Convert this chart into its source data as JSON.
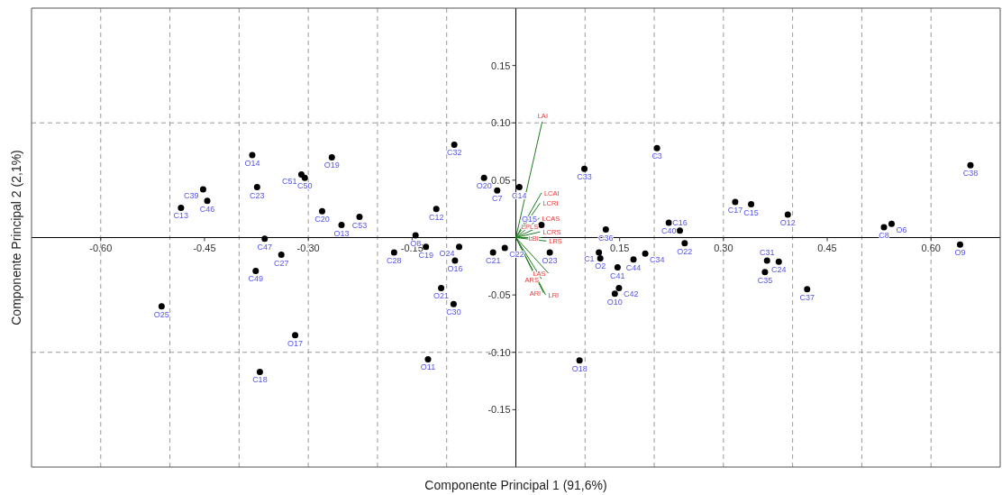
{
  "chart_data": {
    "type": "scatter",
    "xlabel": "Componente Principal 1 (91,6%)",
    "ylabel": "Componente Principal 2 (2,1%)",
    "xlim": [
      -0.7,
      0.7
    ],
    "ylim": [
      -0.2,
      0.2
    ],
    "xticks": [
      {
        "value": -0.6,
        "label": "-0.60"
      },
      {
        "value": -0.45,
        "label": "-0.45"
      },
      {
        "value": -0.3,
        "label": "-0.30"
      },
      {
        "value": -0.15,
        "label": "-0.15"
      },
      {
        "value": 0.15,
        "label": "0.15"
      },
      {
        "value": 0.3,
        "label": "0.30"
      },
      {
        "value": 0.45,
        "label": "0.45"
      },
      {
        "value": 0.6,
        "label": "0.60"
      }
    ],
    "yticks": [
      {
        "value": -0.15,
        "label": "-0.15"
      },
      {
        "value": -0.1,
        "label": "-0.10"
      },
      {
        "value": -0.05,
        "label": "-0.05"
      },
      {
        "value": 0.05,
        "label": "0.05"
      },
      {
        "value": 0.1,
        "label": "0.10"
      },
      {
        "value": 0.15,
        "label": "0.15"
      }
    ],
    "grid": false,
    "marker": "circle",
    "ref_lines": [
      {
        "axis": "x",
        "value": -0.6,
        "color": "#999999",
        "line_style": "dashed"
      },
      {
        "axis": "x",
        "value": -0.5,
        "color": "#999999",
        "line_style": "dashed"
      },
      {
        "axis": "x",
        "value": -0.4,
        "color": "#999999",
        "line_style": "dashed"
      },
      {
        "axis": "x",
        "value": -0.3,
        "color": "#999999",
        "line_style": "dashed"
      },
      {
        "axis": "x",
        "value": -0.2,
        "color": "#999999",
        "line_style": "dashed"
      },
      {
        "axis": "x",
        "value": -0.1,
        "color": "#999999",
        "line_style": "dashed"
      },
      {
        "axis": "x",
        "value": 0.1,
        "color": "#999999",
        "line_style": "dashed"
      },
      {
        "axis": "x",
        "value": 0.2,
        "color": "#999999",
        "line_style": "dashed"
      },
      {
        "axis": "x",
        "value": 0.3,
        "color": "#999999",
        "line_style": "dashed"
      },
      {
        "axis": "x",
        "value": 0.4,
        "color": "#999999",
        "line_style": "dashed"
      },
      {
        "axis": "x",
        "value": 0.5,
        "color": "#999999",
        "line_style": "dashed"
      },
      {
        "axis": "x",
        "value": 0.6,
        "color": "#999999",
        "line_style": "dashed"
      },
      {
        "axis": "y",
        "value": -0.1,
        "color": "#999999",
        "line_style": "dashed"
      },
      {
        "axis": "y",
        "value": 0.1,
        "color": "#999999",
        "line_style": "dashed"
      },
      {
        "axis": "x",
        "value": 0,
        "color": "#000000",
        "line_style": "solid"
      },
      {
        "axis": "y",
        "value": 0,
        "color": "#000000",
        "line_style": "solid"
      }
    ],
    "series": [
      {
        "type": "scatter",
        "color": "#000000",
        "x": [
          -0.484,
          -0.452,
          -0.446,
          -0.381,
          -0.374,
          -0.31,
          -0.305,
          -0.266,
          -0.28,
          -0.252,
          -0.226,
          -0.363,
          -0.339,
          -0.376,
          -0.512,
          -0.319,
          -0.37,
          -0.089,
          -0.046,
          -0.027,
          0.005,
          -0.115,
          -0.145,
          -0.176,
          -0.13,
          -0.082,
          -0.088,
          -0.033,
          -0.016,
          -0.108,
          -0.09,
          -0.127,
          0.037,
          0.099,
          0.049,
          0.204,
          0.221,
          0.237,
          0.13,
          0.244,
          0.12,
          0.122,
          0.17,
          0.187,
          0.147,
          0.149,
          0.143,
          0.092,
          0.317,
          0.34,
          0.393,
          0.532,
          0.543,
          0.657,
          0.642,
          0.363,
          0.38,
          0.36,
          0.421
        ],
        "values": [
          0.026,
          0.042,
          0.032,
          0.072,
          0.044,
          0.055,
          0.052,
          0.07,
          0.023,
          0.011,
          0.018,
          -0.001,
          -0.015,
          -0.029,
          -0.06,
          -0.085,
          -0.117,
          0.081,
          0.052,
          0.041,
          0.044,
          0.025,
          0.002,
          -0.013,
          -0.008,
          -0.008,
          -0.02,
          -0.013,
          -0.009,
          -0.044,
          -0.058,
          -0.106,
          0.011,
          0.06,
          -0.013,
          0.078,
          0.013,
          0.006,
          0.007,
          -0.005,
          -0.013,
          -0.018,
          -0.019,
          -0.014,
          -0.026,
          -0.044,
          -0.049,
          -0.107,
          0.031,
          0.029,
          0.02,
          0.009,
          0.012,
          0.063,
          -0.006,
          -0.02,
          -0.021,
          -0.03,
          -0.045
        ]
      },
      {
        "type": "line",
        "name": "LAI",
        "color": "#1e7b1e",
        "marker": "none",
        "x": [
          0,
          0.038
        ],
        "values": [
          0,
          0.101
        ]
      },
      {
        "type": "line",
        "name": "LCAI",
        "color": "#1e7b1e",
        "marker": "none",
        "x": [
          0,
          0.037
        ],
        "values": [
          0,
          0.039
        ]
      },
      {
        "type": "line",
        "name": "LCRI",
        "color": "#1e7b1e",
        "marker": "none",
        "x": [
          0,
          0.035
        ],
        "values": [
          0,
          0.03
        ]
      },
      {
        "type": "line",
        "name": "LCAS",
        "color": "#1e7b1e",
        "marker": "none",
        "x": [
          0,
          0.034
        ],
        "values": [
          0,
          0.017
        ]
      },
      {
        "type": "line",
        "name": "LPLS",
        "color": "#1e7b1e",
        "marker": "none",
        "x": [
          0,
          0.036
        ],
        "values": [
          0,
          0.01
        ]
      },
      {
        "type": "line",
        "name": "LCRS",
        "color": "#1e7b1e",
        "marker": "none",
        "x": [
          0,
          0.035
        ],
        "values": [
          0,
          0.005
        ]
      },
      {
        "type": "line",
        "name": "LBI",
        "color": "#1e7b1e",
        "marker": "none",
        "x": [
          0,
          0.037
        ],
        "values": [
          0,
          0
        ]
      },
      {
        "type": "line",
        "name": "LRS",
        "color": "#1e7b1e",
        "marker": "none",
        "x": [
          0,
          0.044
        ],
        "values": [
          0,
          -0.003
        ]
      },
      {
        "type": "line",
        "name": "LAS",
        "color": "#1e7b1e",
        "marker": "none",
        "x": [
          0,
          0.047
        ],
        "values": [
          0,
          -0.031
        ]
      },
      {
        "type": "line",
        "name": "ARS",
        "color": "#1e7b1e",
        "marker": "none",
        "x": [
          0,
          0.037
        ],
        "values": [
          0,
          -0.036
        ]
      },
      {
        "type": "line",
        "name": "ARI",
        "color": "#1e7b1e",
        "marker": "none",
        "x": [
          0,
          0.04
        ],
        "values": [
          0,
          -0.048
        ]
      },
      {
        "type": "line",
        "name": "LRI",
        "color": "#1e7b1e",
        "marker": "none",
        "x": [
          0,
          0.043
        ],
        "values": [
          0,
          -0.05
        ]
      }
    ],
    "annotations": [
      {
        "text": "C13",
        "x": -0.484,
        "y": 0.026
      },
      {
        "text": "C39",
        "x": -0.452,
        "y": 0.042
      },
      {
        "text": "C46",
        "x": -0.446,
        "y": 0.032
      },
      {
        "text": "O14",
        "x": -0.381,
        "y": 0.072
      },
      {
        "text": "C23",
        "x": -0.374,
        "y": 0.044
      },
      {
        "text": "C51",
        "x": -0.31,
        "y": 0.055
      },
      {
        "text": "C50",
        "x": -0.305,
        "y": 0.052
      },
      {
        "text": "O19",
        "x": -0.266,
        "y": 0.07
      },
      {
        "text": "C20",
        "x": -0.28,
        "y": 0.023
      },
      {
        "text": "O13",
        "x": -0.252,
        "y": 0.011
      },
      {
        "text": "C53",
        "x": -0.226,
        "y": 0.018
      },
      {
        "text": "C47",
        "x": -0.363,
        "y": -0.001
      },
      {
        "text": "C27",
        "x": -0.339,
        "y": -0.015
      },
      {
        "text": "C49",
        "x": -0.376,
        "y": -0.029
      },
      {
        "text": "O25",
        "x": -0.512,
        "y": -0.06
      },
      {
        "text": "O17",
        "x": -0.319,
        "y": -0.085
      },
      {
        "text": "C18",
        "x": -0.37,
        "y": -0.117
      },
      {
        "text": "C32",
        "x": -0.089,
        "y": 0.081
      },
      {
        "text": "O20",
        "x": -0.046,
        "y": 0.052
      },
      {
        "text": "C7",
        "x": -0.027,
        "y": 0.041
      },
      {
        "text": "C14",
        "x": 0.005,
        "y": 0.044
      },
      {
        "text": "C12",
        "x": -0.115,
        "y": 0.025
      },
      {
        "text": "O8",
        "x": -0.145,
        "y": 0.002
      },
      {
        "text": "C28",
        "x": -0.176,
        "y": -0.013
      },
      {
        "text": "C19",
        "x": -0.13,
        "y": -0.008
      },
      {
        "text": "O24",
        "x": -0.082,
        "y": -0.008
      },
      {
        "text": "O16",
        "x": -0.088,
        "y": -0.02
      },
      {
        "text": "C21",
        "x": -0.033,
        "y": -0.013
      },
      {
        "text": "C22",
        "x": -0.016,
        "y": -0.009
      },
      {
        "text": "O21",
        "x": -0.108,
        "y": -0.044
      },
      {
        "text": "C30",
        "x": -0.09,
        "y": -0.058
      },
      {
        "text": "O11",
        "x": -0.127,
        "y": -0.106
      },
      {
        "text": "O15",
        "x": 0.037,
        "y": 0.011
      },
      {
        "text": "C33",
        "x": 0.099,
        "y": 0.06
      },
      {
        "text": "O23",
        "x": 0.049,
        "y": -0.013
      },
      {
        "text": "C3",
        "x": 0.204,
        "y": 0.078
      },
      {
        "text": "C40",
        "x": 0.221,
        "y": 0.013
      },
      {
        "text": "C16",
        "x": 0.237,
        "y": 0.006
      },
      {
        "text": "C36",
        "x": 0.13,
        "y": 0.007
      },
      {
        "text": "O22",
        "x": 0.244,
        "y": -0.005
      },
      {
        "text": "C1",
        "x": 0.12,
        "y": -0.013
      },
      {
        "text": "O2",
        "x": 0.122,
        "y": -0.018
      },
      {
        "text": "C44",
        "x": 0.17,
        "y": -0.019
      },
      {
        "text": "C34",
        "x": 0.187,
        "y": -0.014
      },
      {
        "text": "C41",
        "x": 0.147,
        "y": -0.026
      },
      {
        "text": "C42",
        "x": 0.149,
        "y": -0.044
      },
      {
        "text": "O10",
        "x": 0.143,
        "y": -0.049
      },
      {
        "text": "O18",
        "x": 0.092,
        "y": -0.107
      },
      {
        "text": "C17",
        "x": 0.317,
        "y": 0.031
      },
      {
        "text": "C15",
        "x": 0.34,
        "y": 0.029
      },
      {
        "text": "O12",
        "x": 0.393,
        "y": 0.02
      },
      {
        "text": "C8",
        "x": 0.532,
        "y": 0.009
      },
      {
        "text": "O6",
        "x": 0.543,
        "y": 0.012
      },
      {
        "text": "C38",
        "x": 0.657,
        "y": 0.063
      },
      {
        "text": "O9",
        "x": 0.642,
        "y": -0.006
      },
      {
        "text": "C31",
        "x": 0.363,
        "y": -0.02
      },
      {
        "text": "C24",
        "x": 0.38,
        "y": -0.021
      },
      {
        "text": "C35",
        "x": 0.36,
        "y": -0.03
      },
      {
        "text": "C37",
        "x": 0.421,
        "y": -0.045
      }
    ]
  }
}
